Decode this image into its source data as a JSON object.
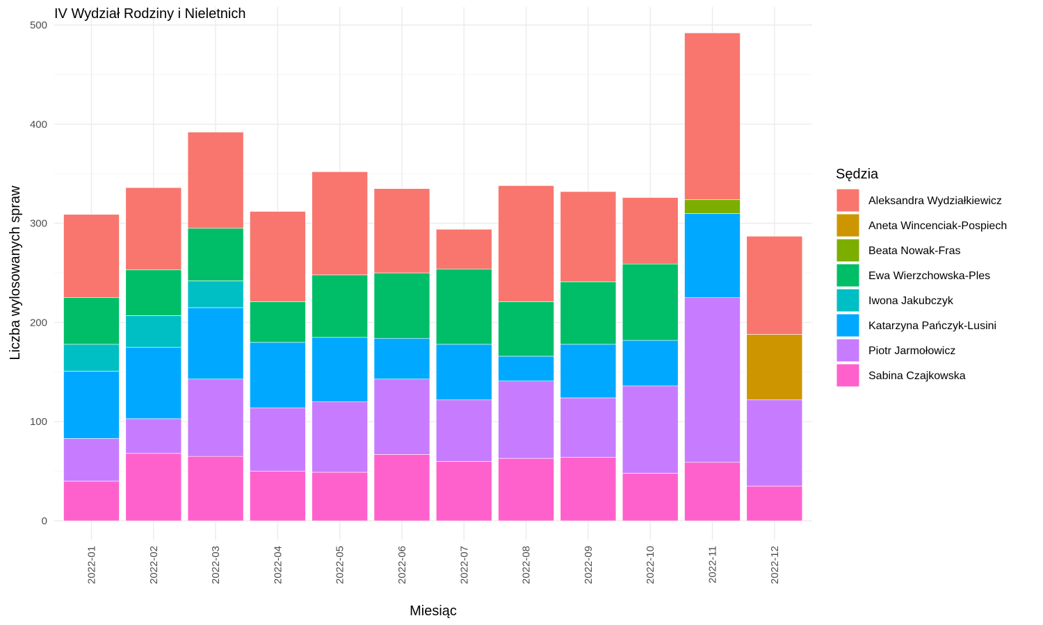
{
  "chart_data": {
    "type": "bar",
    "stacked": true,
    "title": "IV Wydział Rodziny i Nieletnich",
    "xlabel": "Miesiąc",
    "ylabel": "Liczba wylosowanych spraw",
    "ylim": [
      0,
      500
    ],
    "yticks": [
      0,
      100,
      200,
      300,
      400,
      500
    ],
    "grid": true,
    "legend_position": "right",
    "legend_title": "Sędzia",
    "categories": [
      "2022-01",
      "2022-02",
      "2022-03",
      "2022-04",
      "2022-05",
      "2022-06",
      "2022-07",
      "2022-08",
      "2022-09",
      "2022-10",
      "2022-11",
      "2022-12"
    ],
    "series": [
      {
        "name": "Aleksandra Wydziałkiewicz",
        "color": "#F8766D",
        "values": [
          84,
          83,
          97,
          91,
          104,
          85,
          40,
          117,
          91,
          67,
          168,
          99
        ]
      },
      {
        "name": "Aneta Wincenciak-Pospiech",
        "color": "#CD9600",
        "values": [
          0,
          0,
          0,
          0,
          0,
          0,
          0,
          0,
          0,
          0,
          0,
          66
        ]
      },
      {
        "name": "Beata Nowak-Fras",
        "color": "#7CAE00",
        "values": [
          0,
          0,
          0,
          0,
          0,
          0,
          0,
          0,
          0,
          0,
          14,
          0
        ]
      },
      {
        "name": "Ewa Wierzchowska-Ples",
        "color": "#00BE67",
        "values": [
          47,
          46,
          53,
          41,
          63,
          66,
          76,
          55,
          63,
          77,
          0,
          0
        ]
      },
      {
        "name": "Iwona Jakubczyk",
        "color": "#00BFC4",
        "values": [
          27,
          32,
          27,
          0,
          0,
          0,
          0,
          0,
          0,
          0,
          0,
          0
        ]
      },
      {
        "name": "Katarzyna Pańczyk-Lusini",
        "color": "#00A9FF",
        "values": [
          68,
          72,
          72,
          66,
          65,
          41,
          56,
          25,
          54,
          46,
          85,
          0
        ]
      },
      {
        "name": "Piotr Jarmołowicz",
        "color": "#C77CFF",
        "values": [
          43,
          35,
          78,
          64,
          71,
          76,
          62,
          78,
          60,
          88,
          166,
          87
        ]
      },
      {
        "name": "Sabina Czajkowska",
        "color": "#FF61CC",
        "values": [
          40,
          68,
          65,
          50,
          49,
          67,
          60,
          63,
          64,
          48,
          59,
          35
        ]
      }
    ]
  }
}
